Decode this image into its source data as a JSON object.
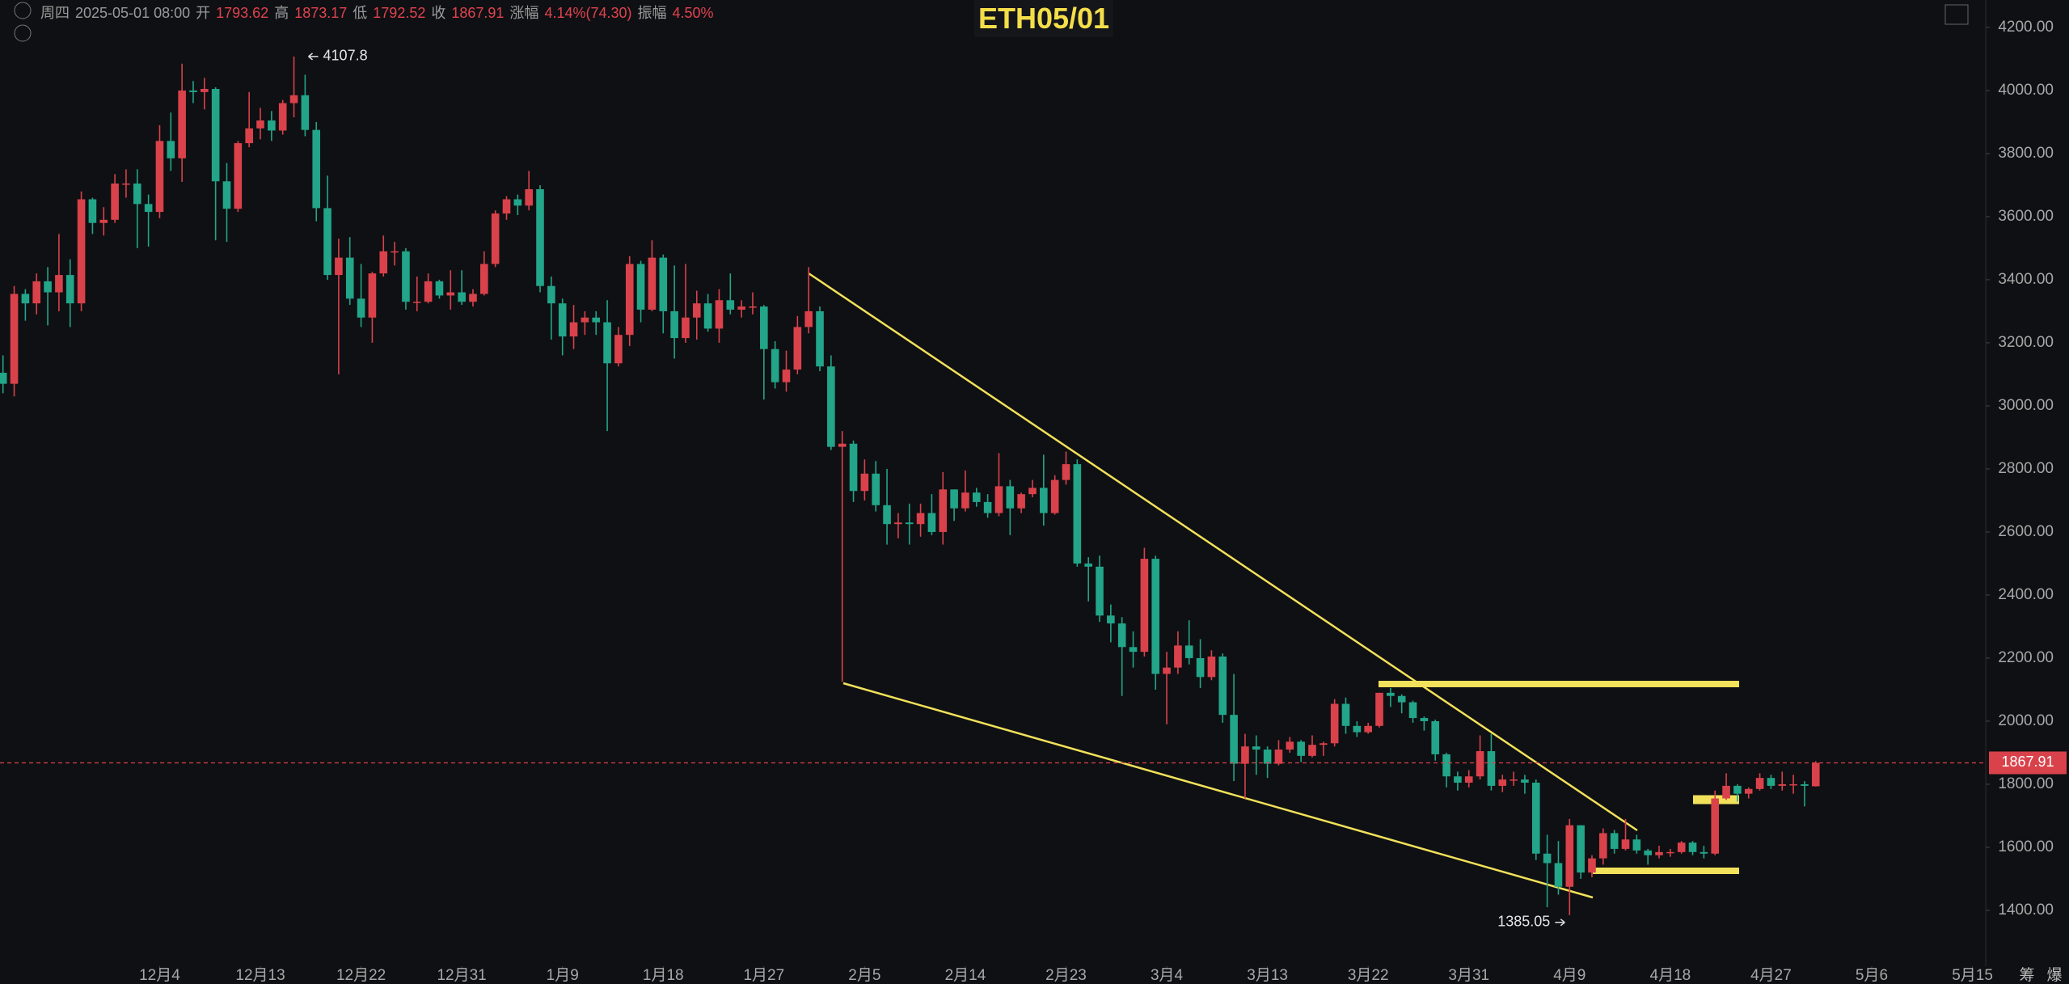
{
  "header": {
    "weekday": "周四",
    "datetime": "2025-05-01 08:00",
    "labels": [
      "开",
      "高",
      "低",
      "收",
      "涨幅",
      "振幅"
    ],
    "change": "4.14%(74.30)",
    "amplitude": "4.50%"
  },
  "toolbar": [
    "筹",
    "爆"
  ],
  "chart_data": {
    "type": "candlestick",
    "title": "ETH05/01",
    "up_color": "#d9424b",
    "down_color": "#22a589",
    "x": [
      "11月20",
      "11月21",
      "11月22",
      "11月23",
      "11月24",
      "11月25",
      "11月26",
      "11月27",
      "11月28",
      "11月29",
      "11月30",
      "12月1",
      "12月2",
      "12月3",
      "12月4",
      "12月5",
      "12月6",
      "12月7",
      "12月8",
      "12月9",
      "12月10",
      "12月11",
      "12月12",
      "12月13",
      "12月14",
      "12月15",
      "12月16",
      "12月17",
      "12月18",
      "12月19",
      "12月20",
      "12月21",
      "12月22",
      "12月23",
      "12月24",
      "12月25",
      "12月26",
      "12月27",
      "12月28",
      "12月29",
      "12月30",
      "12月31",
      "1月1",
      "1月2",
      "1月3",
      "1月4",
      "1月5",
      "1月6",
      "1月7",
      "1月8",
      "1月9",
      "1月10",
      "1月11",
      "1月12",
      "1月13",
      "1月14",
      "1月15",
      "1月16",
      "1月17",
      "1月18",
      "1月19",
      "1月20",
      "1月21",
      "1月22",
      "1月23",
      "1月24",
      "1月25",
      "1月26",
      "1月27",
      "1月28",
      "1月29",
      "1月30",
      "1月31",
      "2月1",
      "2月2",
      "2月3",
      "2月4",
      "2月5",
      "2月6",
      "2月7",
      "2月8",
      "2月9",
      "2月10",
      "2月11",
      "2月12",
      "2月13",
      "2月14",
      "2月15",
      "2月16",
      "2月17",
      "2月18",
      "2月19",
      "2月20",
      "2月21",
      "2月22",
      "2月23",
      "2月24",
      "2月25",
      "2月26",
      "2月27",
      "2月28",
      "3月1",
      "3月2",
      "3月3",
      "3月4",
      "3月5",
      "3月6",
      "3月7",
      "3月8",
      "3月9",
      "3月10",
      "3月11",
      "3月12",
      "3月13",
      "3月14",
      "3月15",
      "3月16",
      "3月17",
      "3月18",
      "3月19",
      "3月20",
      "3月21",
      "3月22",
      "3月23",
      "3月24",
      "3月25",
      "3月26",
      "3月27",
      "3月28",
      "3月29",
      "3月30",
      "3月31",
      "4月1",
      "4月2",
      "4月3",
      "4月4",
      "4月5",
      "4月6",
      "4月7",
      "4月8",
      "4月9",
      "4月10",
      "4月11",
      "4月12",
      "4月13",
      "4月14",
      "4月15",
      "4月16",
      "4月17",
      "4月18",
      "4月19",
      "4月20",
      "4月21",
      "4月22",
      "4月23",
      "4月24",
      "4月25",
      "4月26",
      "4月27",
      "4月28",
      "4月29",
      "4月30",
      "5月1"
    ],
    "open": [
      3105,
      3070,
      3355,
      3325,
      3395,
      3360,
      3415,
      3325,
      3655,
      3580,
      3590,
      3705,
      3705,
      3640,
      3615,
      3840,
      3785,
      4000,
      3995,
      4005,
      3712,
      3625,
      3833,
      3880,
      3905,
      3873,
      3960,
      3985,
      3875,
      3627,
      3415,
      3470,
      3340,
      3280,
      3420,
      3490,
      3490,
      3330,
      3330,
      3395,
      3350,
      3360,
      3330,
      3355,
      3450,
      3610,
      3655,
      3635,
      3687,
      3380,
      3325,
      3220,
      3265,
      3280,
      3265,
      3135,
      3225,
      3450,
      3305,
      3470,
      3300,
      3215,
      3280,
      3325,
      3245,
      3335,
      3305,
      3315,
      3315,
      3180,
      3075,
      3115,
      3250,
      3300,
      3125,
      2870,
      2880,
      2730,
      2785,
      2685,
      2625,
      2630,
      2625,
      2660,
      2600,
      2735,
      2675,
      2725,
      2695,
      2660,
      2745,
      2675,
      2720,
      2740,
      2660,
      2765,
      2815,
      2500,
      2490,
      2335,
      2310,
      2235,
      2220,
      2515,
      2150,
      2170,
      2240,
      2200,
      2140,
      2205,
      2020,
      1865,
      1920,
      1910,
      1865,
      1910,
      1935,
      1890,
      1925,
      1930,
      2055,
      1985,
      1965,
      1985,
      2090,
      2080,
      2060,
      2010,
      2000,
      1895,
      1825,
      1805,
      1825,
      1905,
      1795,
      1815,
      1815,
      1805,
      1580,
      1550,
      1475,
      1670,
      1520,
      1565,
      1645,
      1595,
      1625,
      1590,
      1575,
      1585,
      1585,
      1615,
      1585,
      1580,
      1755,
      1795,
      1770,
      1785,
      1820,
      1795,
      1800,
      1800,
      1793.62
    ],
    "high": [
      3160,
      3380,
      3370,
      3420,
      3440,
      3545,
      3465,
      3680,
      3660,
      3630,
      3735,
      3750,
      3750,
      3670,
      3890,
      3930,
      4085,
      4030,
      4040,
      4010,
      3770,
      3840,
      3995,
      3945,
      3935,
      3970,
      4107.8,
      4050,
      3900,
      3730,
      3530,
      3535,
      3450,
      3425,
      3540,
      3520,
      3500,
      3410,
      3420,
      3400,
      3430,
      3430,
      3370,
      3490,
      3620,
      3665,
      3670,
      3745,
      3700,
      3410,
      3340,
      3320,
      3300,
      3300,
      3335,
      3250,
      3475,
      3460,
      3525,
      3480,
      3445,
      3450,
      3365,
      3355,
      3370,
      3420,
      3335,
      3360,
      3320,
      3205,
      3175,
      3285,
      3440,
      3315,
      3160,
      2920,
      2890,
      2830,
      2825,
      2800,
      2660,
      2690,
      2690,
      2720,
      2790,
      2735,
      2795,
      2740,
      2720,
      2850,
      2765,
      2725,
      2765,
      2845,
      2780,
      2855,
      2830,
      2520,
      2525,
      2370,
      2330,
      2285,
      2550,
      2525,
      2220,
      2285,
      2320,
      2260,
      2225,
      2215,
      2150,
      1960,
      1955,
      1920,
      1940,
      1950,
      1940,
      1955,
      1935,
      2070,
      2075,
      2000,
      1995,
      2090,
      2105,
      2085,
      2065,
      2015,
      2005,
      1900,
      1840,
      1845,
      1955,
      1960,
      1830,
      1840,
      1830,
      1815,
      1640,
      1620,
      1690,
      1670,
      1575,
      1660,
      1655,
      1690,
      1640,
      1595,
      1605,
      1595,
      1620,
      1620,
      1605,
      1780,
      1835,
      1800,
      1790,
      1835,
      1830,
      1840,
      1830,
      1810,
      1873.17
    ],
    "low": [
      3040,
      3030,
      3270,
      3290,
      3255,
      3300,
      3250,
      3300,
      3545,
      3540,
      3580,
      3660,
      3500,
      3505,
      3595,
      3745,
      3710,
      3960,
      3940,
      3525,
      3520,
      3615,
      3820,
      3845,
      3840,
      3860,
      3915,
      3855,
      3585,
      3400,
      3100,
      3320,
      3250,
      3200,
      3410,
      3445,
      3305,
      3300,
      3325,
      3340,
      3305,
      3320,
      3315,
      3350,
      3440,
      3590,
      3605,
      3620,
      3360,
      3210,
      3160,
      3180,
      3225,
      3225,
      2920,
      3125,
      3190,
      3265,
      3300,
      3230,
      3150,
      3200,
      3210,
      3235,
      3200,
      3290,
      3280,
      3290,
      3020,
      3055,
      3045,
      3100,
      3230,
      3110,
      2860,
      2125,
      2695,
      2700,
      2665,
      2560,
      2580,
      2560,
      2585,
      2590,
      2560,
      2635,
      2665,
      2680,
      2645,
      2650,
      2590,
      2660,
      2710,
      2620,
      2655,
      2750,
      2490,
      2380,
      2315,
      2250,
      2080,
      2170,
      2205,
      2100,
      1990,
      2150,
      2180,
      2105,
      2130,
      1995,
      1810,
      1755,
      1830,
      1820,
      1860,
      1900,
      1870,
      1885,
      1890,
      1920,
      1960,
      1950,
      1960,
      1980,
      2045,
      2025,
      1995,
      1970,
      1875,
      1790,
      1780,
      1790,
      1815,
      1780,
      1775,
      1795,
      1770,
      1560,
      1410,
      1450,
      1385.05,
      1500,
      1505,
      1545,
      1580,
      1590,
      1580,
      1545,
      1565,
      1570,
      1580,
      1575,
      1565,
      1575,
      1750,
      1745,
      1755,
      1780,
      1785,
      1780,
      1770,
      1730,
      1792.52
    ],
    "close": [
      3070,
      3355,
      3325,
      3395,
      3360,
      3415,
      3325,
      3655,
      3580,
      3590,
      3705,
      3705,
      3640,
      3615,
      3840,
      3785,
      4000,
      3995,
      4005,
      3712,
      3625,
      3833,
      3880,
      3905,
      3873,
      3960,
      3985,
      3875,
      3627,
      3415,
      3470,
      3340,
      3280,
      3420,
      3490,
      3490,
      3330,
      3330,
      3395,
      3350,
      3360,
      3330,
      3355,
      3450,
      3610,
      3655,
      3635,
      3687,
      3380,
      3325,
      3220,
      3265,
      3280,
      3265,
      3135,
      3225,
      3450,
      3305,
      3470,
      3300,
      3215,
      3280,
      3325,
      3245,
      3335,
      3305,
      3315,
      3315,
      3180,
      3075,
      3115,
      3250,
      3300,
      3125,
      2870,
      2880,
      2730,
      2785,
      2685,
      2625,
      2630,
      2625,
      2660,
      2600,
      2735,
      2675,
      2725,
      2695,
      2660,
      2745,
      2675,
      2720,
      2740,
      2660,
      2765,
      2815,
      2500,
      2490,
      2335,
      2310,
      2235,
      2220,
      2515,
      2150,
      2170,
      2240,
      2200,
      2140,
      2205,
      2020,
      1865,
      1920,
      1910,
      1865,
      1910,
      1935,
      1890,
      1925,
      1930,
      2055,
      1985,
      1965,
      1985,
      2090,
      2080,
      2060,
      2010,
      2000,
      1895,
      1825,
      1805,
      1825,
      1905,
      1795,
      1815,
      1815,
      1805,
      1580,
      1550,
      1475,
      1670,
      1520,
      1565,
      1645,
      1595,
      1625,
      1590,
      1575,
      1585,
      1585,
      1615,
      1585,
      1580,
      1755,
      1795,
      1770,
      1785,
      1820,
      1795,
      1800,
      1800,
      1795,
      1867.91
    ],
    "ylim": [
      1223,
      4287
    ],
    "yticks": [
      {
        "value": 1400,
        "label": "1400.00"
      },
      {
        "value": 1600,
        "label": "1600.00"
      },
      {
        "value": 1800,
        "label": "1800.00"
      },
      {
        "value": 2000,
        "label": "2000.00"
      },
      {
        "value": 2200,
        "label": "2200.00"
      },
      {
        "value": 2400,
        "label": "2400.00"
      },
      {
        "value": 2600,
        "label": "2600.00"
      },
      {
        "value": 2800,
        "label": "2800.00"
      },
      {
        "value": 3000,
        "label": "3000.00"
      },
      {
        "value": 3200,
        "label": "3200.00"
      },
      {
        "value": 3400,
        "label": "3400.00"
      },
      {
        "value": 3600,
        "label": "3600.00"
      },
      {
        "value": 3800,
        "label": "3800.00"
      },
      {
        "value": 4000,
        "label": "4000.00"
      },
      {
        "value": 4200,
        "label": "4200.00"
      }
    ],
    "xticks": [
      "12月4",
      "12月13",
      "12月22",
      "12月31",
      "1月9",
      "1月18",
      "1月27",
      "2月5",
      "2月14",
      "2月23",
      "3月4",
      "3月13",
      "3月22",
      "3月31",
      "4月9",
      "4月18",
      "4月27",
      "5月6",
      "5月15"
    ],
    "xtick_step_days": 9,
    "high_mark_index": 26,
    "low_mark_index": 140,
    "last_price_line": true
  }
}
